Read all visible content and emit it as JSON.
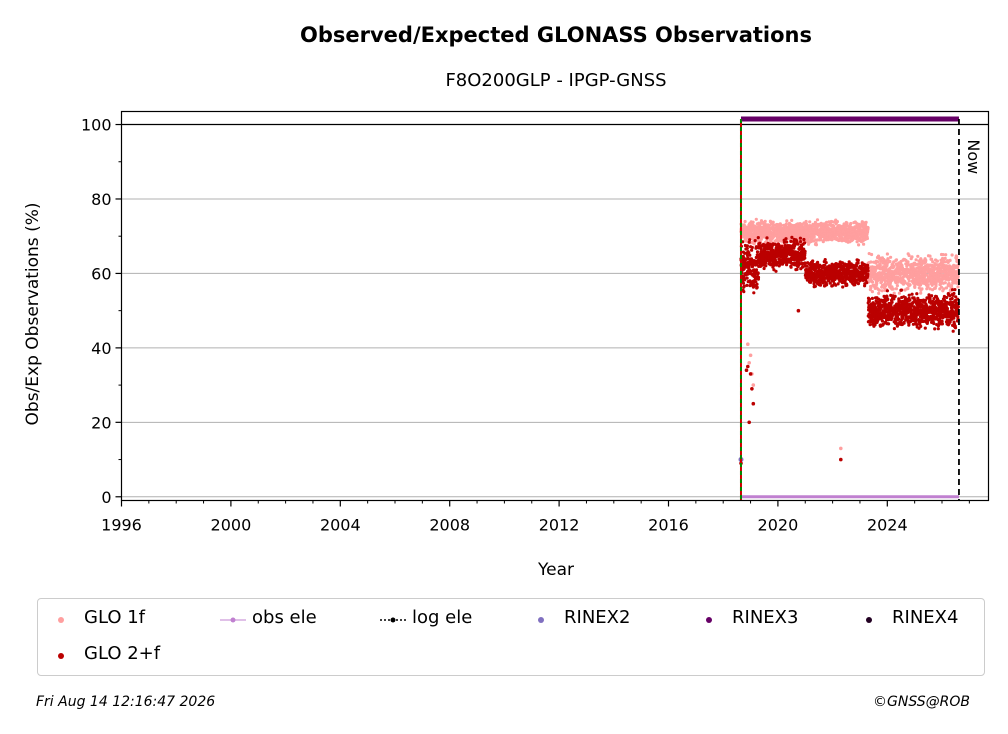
{
  "chart_data": {
    "type": "scatter",
    "title": "Observed/Expected GLONASS Observations",
    "subtitle": "F8O200GLP - IPGP-GNSS",
    "xlabel": "Year",
    "ylabel": "Obs/Exp Observations (%)",
    "xlim": [
      1996,
      2027.7
    ],
    "ylim": [
      -1,
      103.5
    ],
    "xticks": [
      1996,
      2000,
      2004,
      2008,
      2012,
      2016,
      2020,
      2024
    ],
    "yticks": [
      0,
      20,
      40,
      60,
      80,
      100
    ],
    "grid": "horizontal",
    "now_x": 2026.62,
    "now_label": "Now",
    "start_x": 2018.65,
    "legend_position": "bottom",
    "series": [
      {
        "name": "GLO 1f",
        "color": "#ff9f9f",
        "segments": [
          {
            "x": [
              2018.65,
              2023.3
            ],
            "mean": 71,
            "spread": 2.2
          },
          {
            "x": [
              2023.3,
              2026.6
            ],
            "mean": 60,
            "spread": 3.5
          }
        ],
        "outliers": [
          [
            2018.65,
            10
          ],
          [
            2018.9,
            41
          ],
          [
            2019.0,
            38
          ],
          [
            2019.1,
            30
          ],
          [
            2018.95,
            36
          ],
          [
            2019.05,
            33
          ],
          [
            2022.3,
            13
          ]
        ]
      },
      {
        "name": "GLO 2+f",
        "color": "#bb0000",
        "segments": [
          {
            "x": [
              2018.65,
              2019.3
            ],
            "mean": 62,
            "spread": 5
          },
          {
            "x": [
              2019.3,
              2021.0
            ],
            "mean": 65,
            "spread": 3
          },
          {
            "x": [
              2021.0,
              2023.3
            ],
            "mean": 60,
            "spread": 2.5
          },
          {
            "x": [
              2023.3,
              2026.6
            ],
            "mean": 50,
            "spread": 3.5
          }
        ],
        "outliers": [
          [
            2018.65,
            9
          ],
          [
            2018.9,
            35
          ],
          [
            2019.0,
            33
          ],
          [
            2019.1,
            25
          ],
          [
            2018.95,
            20
          ],
          [
            2019.05,
            29
          ],
          [
            2018.85,
            34
          ],
          [
            2022.3,
            10
          ],
          [
            2020.75,
            50
          ]
        ]
      },
      {
        "name": "obs ele",
        "color": "#c080d0",
        "x": [
          2018.65,
          2026.62
        ],
        "y": [
          0,
          0
        ]
      },
      {
        "name": "log ele",
        "color": "#000000",
        "x": [],
        "y": []
      },
      {
        "name": "RINEX2",
        "color": "#8070c0",
        "x": [
          2018.65
        ],
        "y": [
          10
        ]
      },
      {
        "name": "RINEX3",
        "color": "#660066",
        "x": [
          2018.65,
          2026.62
        ],
        "y": [
          101.5,
          101.5
        ]
      },
      {
        "name": "RINEX4",
        "color": "#220022",
        "x": [],
        "y": []
      }
    ]
  },
  "footer": {
    "timestamp": "Fri Aug 14 12:16:47 2026",
    "credit": "©GNSS@ROB"
  }
}
